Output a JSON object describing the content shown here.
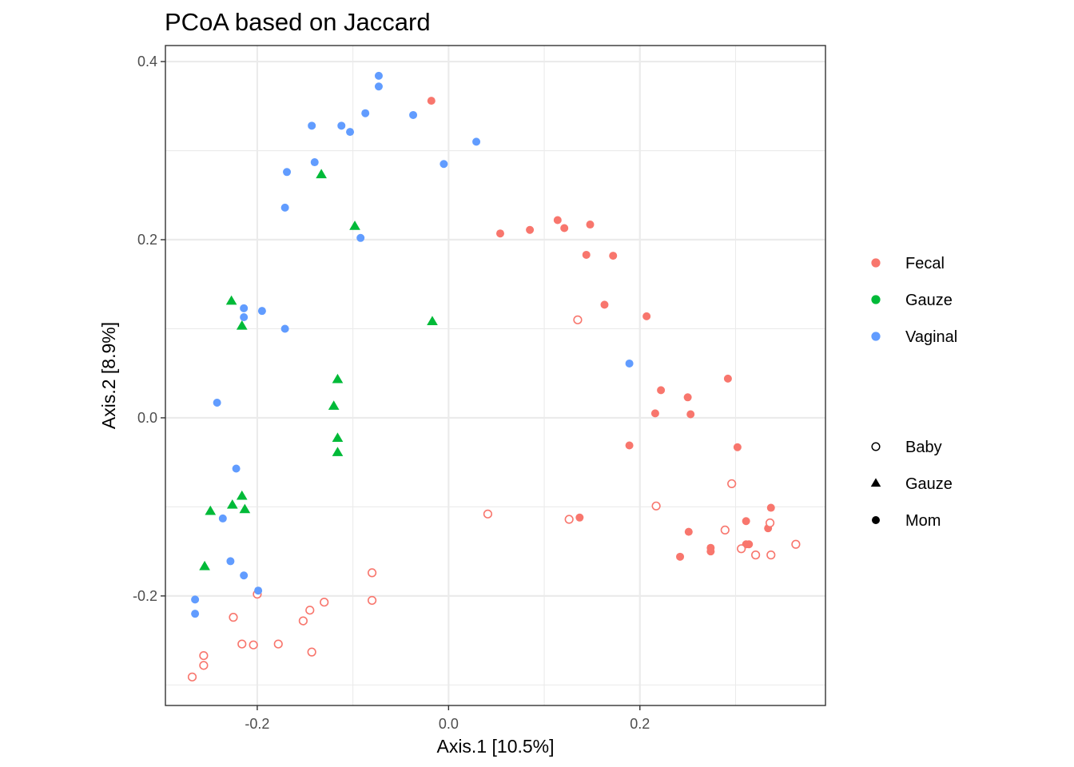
{
  "chart_data": {
    "type": "scatter",
    "title": "PCoA based on Jaccard",
    "xlabel": "Axis.1   [10.5%]",
    "ylabel": "Axis.2   [8.9%]",
    "xlim": [
      -0.296,
      0.394
    ],
    "ylim": [
      -0.323,
      0.418
    ],
    "xticks": [
      -0.2,
      0.0,
      0.2
    ],
    "xtick_labels": [
      "-0.2",
      "0.0",
      "0.2"
    ],
    "yticks": [
      -0.2,
      0.0,
      0.2,
      0.4
    ],
    "ytick_labels": [
      "-0.2",
      "0.0",
      "0.2",
      "0.4"
    ],
    "grid": true,
    "legend_placement": "right",
    "color_legend": [
      {
        "name": "Fecal",
        "color": "#F8766D"
      },
      {
        "name": "Gauze",
        "color": "#00BA38"
      },
      {
        "name": "Vaginal",
        "color": "#619CFF"
      }
    ],
    "shape_legend": [
      {
        "name": "Baby",
        "shape": "open-circle"
      },
      {
        "name": "Gauze",
        "shape": "triangle"
      },
      {
        "name": "Mom",
        "shape": "filled-circle"
      }
    ],
    "series": [
      {
        "color_group": "Fecal",
        "shape_group": "Mom",
        "points": [
          [
            -0.018,
            0.356
          ],
          [
            0.054,
            0.207
          ],
          [
            0.085,
            0.211
          ],
          [
            0.114,
            0.222
          ],
          [
            0.121,
            0.213
          ],
          [
            0.148,
            0.217
          ],
          [
            0.144,
            0.183
          ],
          [
            0.172,
            0.182
          ],
          [
            0.163,
            0.127
          ],
          [
            0.207,
            0.114
          ],
          [
            0.292,
            0.044
          ],
          [
            0.222,
            0.031
          ],
          [
            0.25,
            0.023
          ],
          [
            0.216,
            0.005
          ],
          [
            0.253,
            0.004
          ],
          [
            0.189,
            -0.031
          ],
          [
            0.302,
            -0.033
          ],
          [
            0.337,
            -0.101
          ],
          [
            0.137,
            -0.112
          ],
          [
            0.311,
            -0.116
          ],
          [
            0.251,
            -0.128
          ],
          [
            0.334,
            -0.124
          ],
          [
            0.314,
            -0.142
          ],
          [
            0.311,
            -0.142
          ],
          [
            0.274,
            -0.146
          ],
          [
            0.274,
            -0.15
          ],
          [
            0.242,
            -0.156
          ]
        ]
      },
      {
        "color_group": "Fecal",
        "shape_group": "Baby",
        "points": [
          [
            0.135,
            0.11
          ],
          [
            0.296,
            -0.074
          ],
          [
            0.217,
            -0.099
          ],
          [
            0.041,
            -0.108
          ],
          [
            0.126,
            -0.114
          ],
          [
            0.289,
            -0.126
          ],
          [
            0.336,
            -0.118
          ],
          [
            0.306,
            -0.147
          ],
          [
            0.321,
            -0.154
          ],
          [
            0.337,
            -0.154
          ],
          [
            0.363,
            -0.142
          ],
          [
            -0.08,
            -0.174
          ],
          [
            -0.08,
            -0.205
          ],
          [
            -0.2,
            -0.198
          ],
          [
            -0.13,
            -0.207
          ],
          [
            -0.145,
            -0.216
          ],
          [
            -0.152,
            -0.228
          ],
          [
            -0.225,
            -0.224
          ],
          [
            -0.216,
            -0.254
          ],
          [
            -0.204,
            -0.255
          ],
          [
            -0.178,
            -0.254
          ],
          [
            -0.143,
            -0.263
          ],
          [
            -0.256,
            -0.267
          ],
          [
            -0.256,
            -0.278
          ],
          [
            -0.268,
            -0.291
          ]
        ]
      },
      {
        "color_group": "Gauze",
        "shape_group": "Gauze",
        "points": [
          [
            -0.133,
            0.273
          ],
          [
            -0.098,
            0.215
          ],
          [
            -0.227,
            0.131
          ],
          [
            -0.216,
            0.103
          ],
          [
            -0.017,
            0.108
          ],
          [
            -0.116,
            0.043
          ],
          [
            -0.12,
            0.013
          ],
          [
            -0.116,
            -0.023
          ],
          [
            -0.116,
            -0.039
          ],
          [
            -0.216,
            -0.088
          ],
          [
            -0.226,
            -0.098
          ],
          [
            -0.213,
            -0.103
          ],
          [
            -0.249,
            -0.105
          ],
          [
            -0.255,
            -0.167
          ]
        ]
      },
      {
        "color_group": "Vaginal",
        "shape_group": "Mom",
        "points": [
          [
            -0.073,
            0.384
          ],
          [
            -0.073,
            0.372
          ],
          [
            -0.087,
            0.342
          ],
          [
            -0.037,
            0.34
          ],
          [
            -0.143,
            0.328
          ],
          [
            -0.112,
            0.328
          ],
          [
            -0.103,
            0.321
          ],
          [
            0.029,
            0.31
          ],
          [
            -0.005,
            0.285
          ],
          [
            -0.14,
            0.287
          ],
          [
            -0.169,
            0.276
          ],
          [
            -0.171,
            0.236
          ],
          [
            -0.092,
            0.202
          ],
          [
            -0.214,
            0.123
          ],
          [
            -0.195,
            0.12
          ],
          [
            -0.214,
            0.113
          ],
          [
            -0.171,
            0.1
          ],
          [
            0.189,
            0.061
          ],
          [
            -0.242,
            0.017
          ],
          [
            -0.222,
            -0.057
          ],
          [
            -0.236,
            -0.113
          ],
          [
            -0.228,
            -0.161
          ],
          [
            -0.214,
            -0.177
          ],
          [
            -0.199,
            -0.194
          ],
          [
            -0.265,
            -0.204
          ],
          [
            -0.265,
            -0.22
          ]
        ]
      }
    ]
  }
}
